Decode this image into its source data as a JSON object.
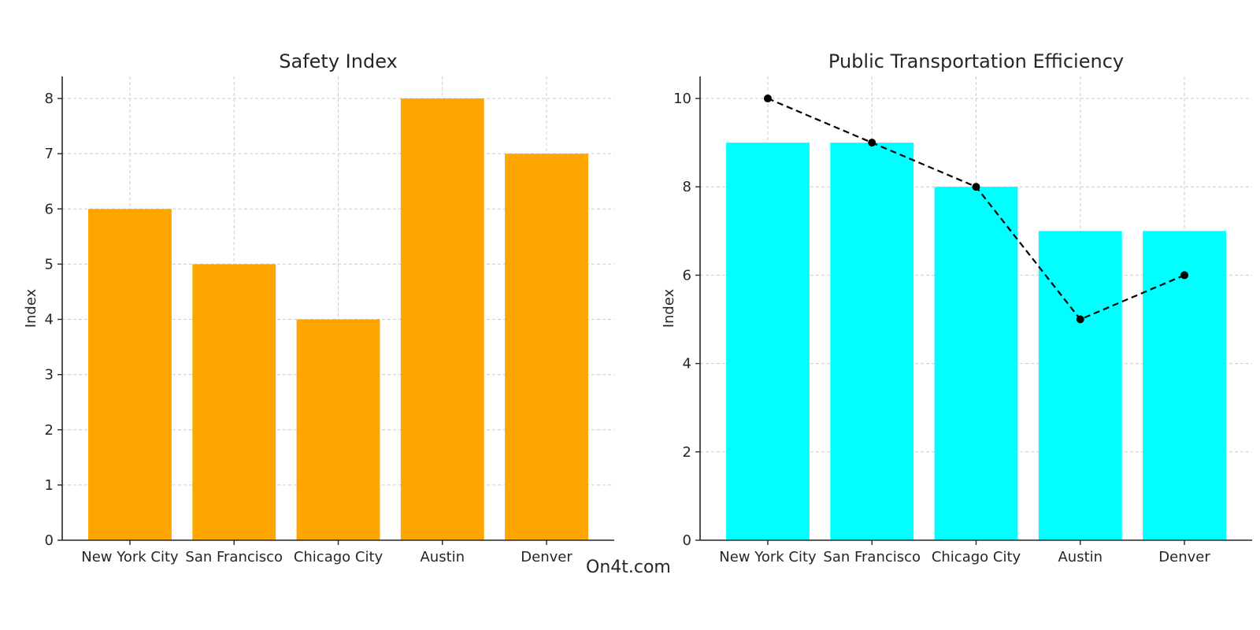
{
  "chart_data": [
    {
      "type": "bar",
      "title": "Safety Index",
      "xlabel": "",
      "ylabel": "Index",
      "categories": [
        "New York City",
        "San Francisco",
        "Chicago City",
        "Austin",
        "Denver"
      ],
      "values": [
        6,
        5,
        4,
        8,
        7
      ],
      "ylim": [
        0,
        8.4
      ],
      "yticks": [
        0,
        1,
        2,
        3,
        4,
        5,
        6,
        7,
        8
      ],
      "bar_color": "#FFA500",
      "grid": true
    },
    {
      "type": "bar",
      "title": "Public Transportation Efficiency",
      "xlabel": "",
      "ylabel": "Index",
      "categories": [
        "New York City",
        "San Francisco",
        "Chicago City",
        "Austin",
        "Denver"
      ],
      "values": [
        9,
        9,
        8,
        7,
        7
      ],
      "line_values": [
        10,
        9,
        8,
        5,
        6
      ],
      "line_style": "dashed",
      "line_color": "#000000",
      "ylim": [
        0,
        10.5
      ],
      "yticks": [
        0,
        2,
        4,
        6,
        8,
        10
      ],
      "bar_color": "#00FFFF",
      "grid": true
    }
  ],
  "watermark": "On4t.com"
}
